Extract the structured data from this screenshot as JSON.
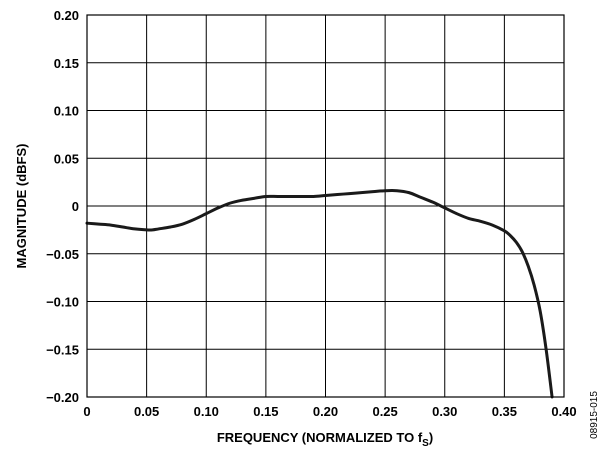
{
  "chart_data": {
    "type": "line",
    "title": "",
    "xlabel": "FREQUENCY (NORMALIZED TO f",
    "xlabel_subscript": "S",
    "xlabel_suffix": ")",
    "ylabel": "MAGNITUDE (dBFS)",
    "xlim": [
      0,
      0.4
    ],
    "ylim": [
      -0.2,
      0.2
    ],
    "grid": true,
    "x_ticks": [
      0,
      0.05,
      0.1,
      0.15,
      0.2,
      0.25,
      0.3,
      0.35,
      0.4
    ],
    "x_tick_labels": [
      "0",
      "0.05",
      "0.10",
      "0.15",
      "0.20",
      "0.25",
      "0.30",
      "0.35",
      "0.40"
    ],
    "y_ticks": [
      0.2,
      0.15,
      0.1,
      0.05,
      0,
      -0.05,
      -0.1,
      -0.15,
      -0.2
    ],
    "y_tick_labels": [
      "0.20",
      "0.15",
      "0.10",
      "0.05",
      "0",
      "−0.05",
      "−0.10",
      "−0.15",
      "−0.20"
    ],
    "series": [
      {
        "color": "#1a1a1a",
        "x": [
          0,
          0.01,
          0.02,
          0.03,
          0.04,
          0.05,
          0.055,
          0.06,
          0.07,
          0.08,
          0.09,
          0.1,
          0.11,
          0.12,
          0.13,
          0.14,
          0.15,
          0.16,
          0.17,
          0.18,
          0.19,
          0.2,
          0.21,
          0.22,
          0.23,
          0.24,
          0.25,
          0.26,
          0.27,
          0.28,
          0.29,
          0.3,
          0.31,
          0.32,
          0.33,
          0.34,
          0.35,
          0.355,
          0.36,
          0.365,
          0.37,
          0.375,
          0.38,
          0.385,
          0.39
        ],
        "y": [
          -0.018,
          -0.019,
          -0.02,
          -0.022,
          -0.024,
          -0.025,
          -0.025,
          -0.024,
          -0.022,
          -0.019,
          -0.014,
          -0.008,
          -0.002,
          0.003,
          0.006,
          0.008,
          0.01,
          0.01,
          0.01,
          0.01,
          0.01,
          0.011,
          0.012,
          0.013,
          0.014,
          0.015,
          0.016,
          0.016,
          0.014,
          0.009,
          0.004,
          -0.002,
          -0.008,
          -0.013,
          -0.016,
          -0.02,
          -0.026,
          -0.031,
          -0.038,
          -0.048,
          -0.063,
          -0.083,
          -0.11,
          -0.15,
          -0.2
        ]
      }
    ]
  },
  "figure_id": "08915-015"
}
